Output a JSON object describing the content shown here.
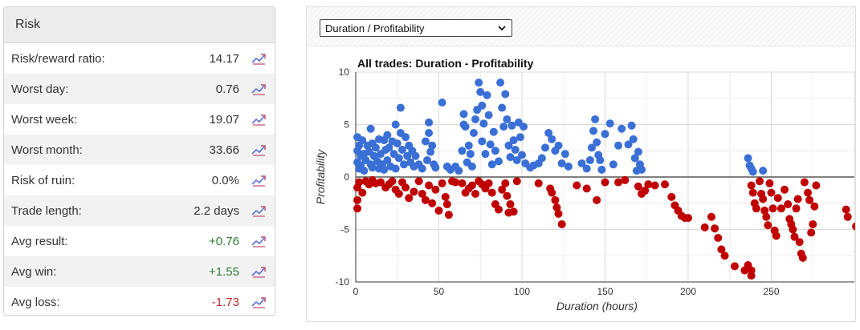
{
  "risk": {
    "title": "Risk",
    "rows": [
      {
        "label": "Risk/reward ratio:",
        "value": "14.17",
        "tone": ""
      },
      {
        "label": "Worst day:",
        "value": "0.76",
        "tone": ""
      },
      {
        "label": "Worst week:",
        "value": "19.07",
        "tone": ""
      },
      {
        "label": "Worst month:",
        "value": "33.66",
        "tone": ""
      },
      {
        "label": "Risk of ruin:",
        "value": "0.0%",
        "tone": ""
      },
      {
        "label": "Trade length:",
        "value": "2.2 days",
        "tone": ""
      },
      {
        "label": "Avg result:",
        "value": "+0.76",
        "tone": "pos"
      },
      {
        "label": "Avg win:",
        "value": "+1.55",
        "tone": "pos"
      },
      {
        "label": "Avg loss:",
        "value": "-1.73",
        "tone": "neg"
      }
    ]
  },
  "chart_panel": {
    "selector_value": "Duration / Profitability"
  },
  "colors": {
    "positive": "#3a6fd6",
    "negative": "#c00000",
    "icon": "#5b6fd6"
  },
  "chart_data": {
    "type": "scatter",
    "title": "All trades: Duration - Profitability",
    "xlabel": "Duration (hours)",
    "ylabel": "Profitability",
    "xlim": [
      0,
      300
    ],
    "ylim": [
      -10,
      10
    ],
    "xticks": [
      0,
      50,
      100,
      150,
      200,
      250
    ],
    "yticks": [
      -10,
      -5,
      0,
      5,
      10
    ],
    "grid": true,
    "series": [
      {
        "values": [
          [
            1,
            3.8
          ],
          [
            1,
            2.5
          ],
          [
            1,
            1.4
          ],
          [
            2,
            3
          ],
          [
            2,
            0.8
          ],
          [
            3,
            2
          ],
          [
            3,
            1.1
          ],
          [
            4,
            3.5
          ],
          [
            5,
            2.2
          ],
          [
            5,
            0.6
          ],
          [
            6,
            1.6
          ],
          [
            7,
            3
          ],
          [
            8,
            2.4
          ],
          [
            9,
            1.2
          ],
          [
            9,
            4.6
          ],
          [
            10,
            3.2
          ],
          [
            10,
            0.9
          ],
          [
            11,
            2
          ],
          [
            12,
            2.8
          ],
          [
            13,
            1.5
          ],
          [
            14,
            3.6
          ],
          [
            14,
            0.8
          ],
          [
            15,
            2.2
          ],
          [
            16,
            1.2
          ],
          [
            17,
            3.5
          ],
          [
            17,
            0.7
          ],
          [
            18,
            2.6
          ],
          [
            19,
            4
          ],
          [
            19,
            1.6
          ],
          [
            20,
            2.8
          ],
          [
            21,
            1
          ],
          [
            22,
            3.4
          ],
          [
            23,
            2.2
          ],
          [
            24,
            5
          ],
          [
            24,
            0.8
          ],
          [
            25,
            3.2
          ],
          [
            26,
            1.8
          ],
          [
            27,
            4.2
          ],
          [
            27,
            6.6
          ],
          [
            28,
            2.6
          ],
          [
            29,
            1.2
          ],
          [
            30,
            3.8
          ],
          [
            31,
            2
          ],
          [
            32,
            3
          ],
          [
            33,
            1.4
          ],
          [
            34,
            2.5
          ],
          [
            35,
            1
          ],
          [
            36,
            2
          ],
          [
            38,
            1.2
          ],
          [
            40,
            0.8
          ],
          [
            42,
            3.4
          ],
          [
            43,
            1.6
          ],
          [
            44,
            5.2
          ],
          [
            44,
            4.2
          ],
          [
            45,
            2.4
          ],
          [
            46,
            3
          ],
          [
            47,
            1.2
          ],
          [
            48,
            0.9
          ],
          [
            52,
            7.1
          ],
          [
            55,
            1
          ],
          [
            57,
            0.7
          ],
          [
            60,
            1
          ],
          [
            62,
            0.6
          ],
          [
            64,
            2.5
          ],
          [
            65,
            5
          ],
          [
            65,
            6
          ],
          [
            66,
            4.8
          ],
          [
            67,
            1.4
          ],
          [
            68,
            3
          ],
          [
            69,
            2.2
          ],
          [
            70,
            1
          ],
          [
            71,
            4.2
          ],
          [
            72,
            5.5
          ],
          [
            73,
            6.4
          ],
          [
            74,
            9
          ],
          [
            75,
            8.1
          ],
          [
            76,
            6.8
          ],
          [
            76,
            3.4
          ],
          [
            77,
            5.1
          ],
          [
            78,
            2.2
          ],
          [
            79,
            7.8
          ],
          [
            80,
            5.9
          ],
          [
            81,
            3.1
          ],
          [
            82,
            1.2
          ],
          [
            83,
            4.3
          ],
          [
            84,
            2.5
          ],
          [
            86,
            1.5
          ],
          [
            87,
            9
          ],
          [
            88,
            6.6
          ],
          [
            89,
            4.8
          ],
          [
            90,
            7.9
          ],
          [
            91,
            5.5
          ],
          [
            92,
            3
          ],
          [
            93,
            1.9
          ],
          [
            94,
            4.9
          ],
          [
            95,
            3.5
          ],
          [
            96,
            2.6
          ],
          [
            97,
            1.6
          ],
          [
            98,
            5.2
          ],
          [
            99,
            3.8
          ],
          [
            100,
            2.1
          ],
          [
            101,
            4.8
          ],
          [
            102,
            1.3
          ],
          [
            105,
            0.9
          ],
          [
            107,
            1.1
          ],
          [
            110,
            1.3
          ],
          [
            112,
            1.8
          ],
          [
            114,
            2.8
          ],
          [
            116,
            4.2
          ],
          [
            118,
            3.6
          ],
          [
            120,
            2.5
          ],
          [
            122,
            3
          ],
          [
            124,
            1.3
          ],
          [
            126,
            2.2
          ],
          [
            128,
            1
          ],
          [
            136,
            1.3
          ],
          [
            139,
            0.8
          ],
          [
            141,
            1.6
          ],
          [
            142,
            2.8
          ],
          [
            143,
            4.4
          ],
          [
            144,
            5.5
          ],
          [
            145,
            3.3
          ],
          [
            146,
            2.1
          ],
          [
            147,
            1.6
          ],
          [
            148,
            0.7
          ],
          [
            150,
            4.1
          ],
          [
            153,
            5.1
          ],
          [
            155,
            1.2
          ],
          [
            158,
            3
          ],
          [
            160,
            4.6
          ],
          [
            164,
            3.1
          ],
          [
            166,
            4.9
          ],
          [
            167,
            3.6
          ],
          [
            168,
            1.8
          ],
          [
            169,
            0.6
          ],
          [
            170,
            2.4
          ],
          [
            171,
            1.2
          ],
          [
            172,
            0.7
          ],
          [
            236,
            1.8
          ],
          [
            237,
            1.1
          ],
          [
            238,
            0.8
          ],
          [
            239,
            0.5
          ],
          [
            245,
            0.6
          ]
        ]
      },
      {
        "values": [
          [
            1,
            -1
          ],
          [
            1,
            -2.2
          ],
          [
            1,
            -3
          ],
          [
            2,
            -0.5
          ],
          [
            4,
            -1.5
          ],
          [
            6,
            -0.4
          ],
          [
            8,
            -0.7
          ],
          [
            10,
            -0.3
          ],
          [
            12,
            -0.6
          ],
          [
            15,
            -0.5
          ],
          [
            18,
            -1
          ],
          [
            20,
            -0.7
          ],
          [
            22,
            -0.4
          ],
          [
            24,
            -1.2
          ],
          [
            26,
            -1.6
          ],
          [
            28,
            -0.5
          ],
          [
            30,
            -1
          ],
          [
            32,
            -2
          ],
          [
            35,
            -1.4
          ],
          [
            38,
            -0.4
          ],
          [
            40,
            -1.6
          ],
          [
            42,
            -2.2
          ],
          [
            44,
            -0.8
          ],
          [
            46,
            -2.5
          ],
          [
            48,
            -1.2
          ],
          [
            50,
            -3.2
          ],
          [
            52,
            -0.6
          ],
          [
            54,
            -1.9
          ],
          [
            55,
            -2.6
          ],
          [
            56,
            -3.6
          ],
          [
            58,
            -0.4
          ],
          [
            60,
            -0.5
          ],
          [
            64,
            -0.6
          ],
          [
            66,
            -1.5
          ],
          [
            68,
            -1.1
          ],
          [
            70,
            -0.8
          ],
          [
            72,
            -1.6
          ],
          [
            74,
            -0.4
          ],
          [
            76,
            -0.7
          ],
          [
            78,
            -1.1
          ],
          [
            80,
            -0.6
          ],
          [
            82,
            -1.5
          ],
          [
            84,
            -2.6
          ],
          [
            86,
            -3.1
          ],
          [
            88,
            -1.2
          ],
          [
            90,
            -0.6
          ],
          [
            91,
            -1.8
          ],
          [
            92,
            -3.4
          ],
          [
            93,
            -2.6
          ],
          [
            95,
            -3.3
          ],
          [
            97,
            -0.4
          ],
          [
            110,
            -0.6
          ],
          [
            117,
            -1.1
          ],
          [
            118,
            -1.5
          ],
          [
            120,
            -2.2
          ],
          [
            121,
            -2.9
          ],
          [
            122,
            -3.5
          ],
          [
            124,
            -4.5
          ],
          [
            133,
            -0.8
          ],
          [
            139,
            -1.1
          ],
          [
            145,
            -2.2
          ],
          [
            150,
            -0.5
          ],
          [
            158,
            -0.5
          ],
          [
            162,
            -0.3
          ],
          [
            170,
            -0.9
          ],
          [
            172,
            -1.6
          ],
          [
            174,
            -1.3
          ],
          [
            176,
            -0.7
          ],
          [
            180,
            -0.8
          ],
          [
            186,
            -0.7
          ],
          [
            190,
            -1.9
          ],
          [
            192,
            -2.7
          ],
          [
            194,
            -3.2
          ],
          [
            196,
            -3.7
          ],
          [
            198,
            -3.9
          ],
          [
            200,
            -3.9
          ],
          [
            210,
            -4.8
          ],
          [
            214,
            -3.8
          ],
          [
            216,
            -4.9
          ],
          [
            218,
            -5.8
          ],
          [
            220,
            -6.9
          ],
          [
            222,
            -7.5
          ],
          [
            228,
            -8.5
          ],
          [
            234,
            -8.9
          ],
          [
            236,
            -8.4
          ],
          [
            238,
            -8.9
          ],
          [
            238,
            -9.4
          ],
          [
            238,
            -0.8
          ],
          [
            239,
            -1.5
          ],
          [
            240,
            -2.5
          ],
          [
            241,
            -3
          ],
          [
            243,
            -0.4
          ],
          [
            244,
            -1.6
          ],
          [
            245,
            -2.1
          ],
          [
            246,
            -3.2
          ],
          [
            247,
            -3.8
          ],
          [
            248,
            -4.6
          ],
          [
            249,
            -0.6
          ],
          [
            250,
            -1.5
          ],
          [
            251,
            -3
          ],
          [
            252,
            -5.1
          ],
          [
            253,
            -5.6
          ],
          [
            254,
            -2
          ],
          [
            256,
            -3
          ],
          [
            258,
            -1.2
          ],
          [
            260,
            -2.6
          ],
          [
            261,
            -4
          ],
          [
            262,
            -4.5
          ],
          [
            263,
            -5
          ],
          [
            264,
            -5.7
          ],
          [
            265,
            -3
          ],
          [
            266,
            -2.1
          ],
          [
            267,
            -6.2
          ],
          [
            268,
            -7.3
          ],
          [
            269,
            -7.7
          ],
          [
            270,
            -0.5
          ],
          [
            272,
            -1.5
          ],
          [
            273,
            -2.2
          ],
          [
            274,
            -5.3
          ],
          [
            275,
            -4.5
          ],
          [
            276,
            -2.8
          ],
          [
            277,
            -0.8
          ],
          [
            295,
            -3.1
          ],
          [
            296,
            -3.8
          ],
          [
            301,
            -4.7
          ]
        ]
      }
    ]
  }
}
